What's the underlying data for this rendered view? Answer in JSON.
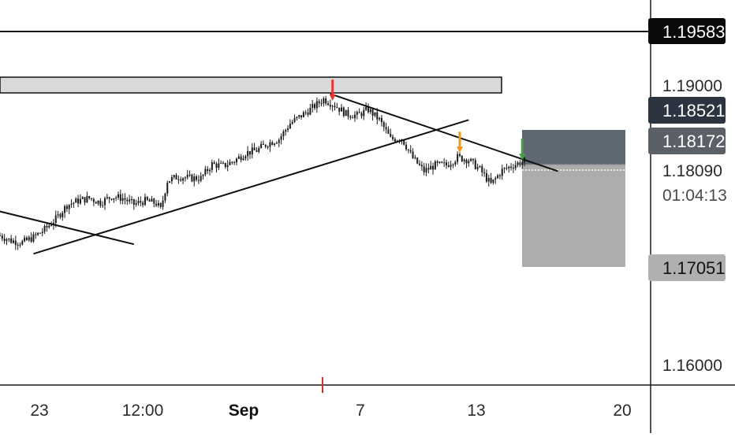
{
  "chart_data": {
    "type": "candlestick",
    "title": "",
    "x_ticks": [
      "23",
      "12:00",
      "Sep",
      "7",
      "13",
      "20"
    ],
    "y_ticks": [
      "1.19000",
      "1.16000"
    ],
    "y_range": [
      1.1556,
      1.1999
    ],
    "current_price": "1.18090",
    "countdown": "01:04:13",
    "price_badges": [
      {
        "label": "1.19583",
        "color": "#0a0a0a"
      },
      {
        "label": "1.18521",
        "color": "#2b3440"
      },
      {
        "label": "1.18172",
        "color": "#5b5f66"
      },
      {
        "label": "1.17051",
        "color": "#b0b0b0"
      }
    ],
    "horizontal_line": 1.19583,
    "resistance_zone": {
      "top": 1.18975,
      "bottom": 1.18815
    },
    "position_box": {
      "entry": 1.18172,
      "stop": 1.18521,
      "target": 1.17051
    },
    "close_path": [
      [
        0,
        1.1728
      ],
      [
        5,
        1.1722
      ],
      [
        10,
        1.172
      ],
      [
        15,
        1.1726
      ],
      [
        20,
        1.1735
      ],
      [
        25,
        1.1747
      ],
      [
        30,
        1.1763
      ],
      [
        35,
        1.1768
      ],
      [
        40,
        1.1771
      ],
      [
        45,
        1.1766
      ],
      [
        50,
        1.1773
      ],
      [
        55,
        1.1771
      ],
      [
        60,
        1.1764
      ],
      [
        65,
        1.1768
      ],
      [
        70,
        1.1765
      ],
      [
        72,
        1.1758
      ],
      [
        75,
        1.1791
      ],
      [
        80,
        1.1796
      ],
      [
        85,
        1.1794
      ],
      [
        90,
        1.1794
      ],
      [
        95,
        1.181
      ],
      [
        100,
        1.1808
      ],
      [
        105,
        1.1814
      ],
      [
        110,
        1.1823
      ],
      [
        115,
        1.1826
      ],
      [
        120,
        1.1834
      ],
      [
        125,
        1.1839
      ],
      [
        130,
        1.1857
      ],
      [
        135,
        1.1866
      ],
      [
        140,
        1.1875
      ],
      [
        145,
        1.1885
      ],
      [
        150,
        1.1878
      ],
      [
        155,
        1.1868
      ],
      [
        160,
        1.1866
      ],
      [
        165,
        1.1873
      ],
      [
        170,
        1.1861
      ],
      [
        175,
        1.1839
      ],
      [
        180,
        1.184
      ],
      [
        185,
        1.1817
      ],
      [
        190,
        1.1802
      ],
      [
        195,
        1.1809
      ],
      [
        200,
        1.1809
      ],
      [
        205,
        1.1818
      ],
      [
        210,
        1.1815
      ],
      [
        215,
        1.1804
      ],
      [
        220,
        1.1787
      ],
      [
        225,
        1.1803
      ],
      [
        230,
        1.1809
      ],
      [
        235,
        1.1814
      ]
    ],
    "trendlines": [
      {
        "from": [
          -10,
          1.1762
        ],
        "to": [
          60,
          1.1718
        ]
      },
      {
        "from": [
          15,
          1.1707
        ],
        "to": [
          210,
          1.1861
        ]
      },
      {
        "from": [
          148,
          1.1891
        ],
        "to": [
          250,
          1.1802
        ]
      }
    ],
    "arrows": [
      {
        "t": 149,
        "price": 1.1883,
        "color": "#e53935"
      },
      {
        "t": 206,
        "price": 1.1823,
        "color": "#f09a1a"
      },
      {
        "t": 234,
        "price": 1.1815,
        "color": "#43a047"
      }
    ]
  }
}
